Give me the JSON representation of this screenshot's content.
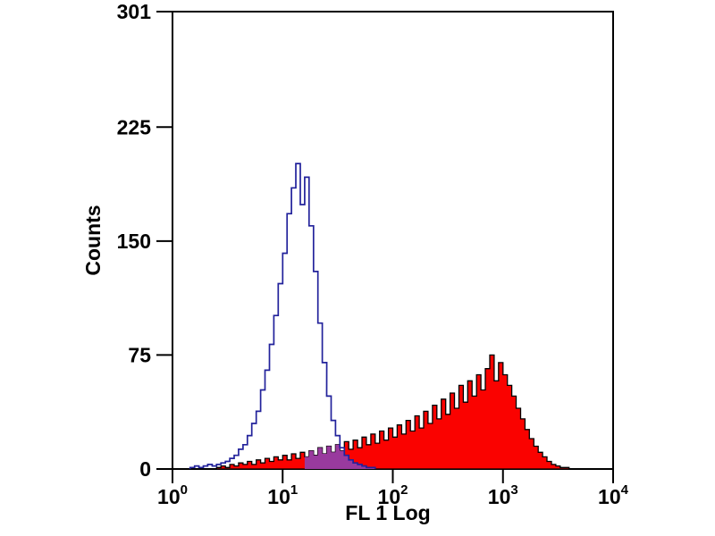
{
  "figure": {
    "background": "#ffffff",
    "axis_color": "#000000"
  },
  "chart_data": {
    "type": "area",
    "subtype": "flow-cytometry-overlay-histogram",
    "title": "",
    "xlabel": "FL 1 Log",
    "ylabel": "Counts",
    "x_scale": "log10",
    "xlim_log10": [
      0,
      4
    ],
    "ylim": [
      0,
      301
    ],
    "x_tick_exponents": [
      0,
      1,
      2,
      3,
      4
    ],
    "x_tick_base": "10",
    "y_ticks": [
      0,
      75,
      150,
      225,
      301
    ],
    "grid": false,
    "legend": "none",
    "x_log10": [
      0,
      0.04,
      0.08,
      0.12,
      0.16,
      0.2,
      0.24,
      0.28,
      0.32,
      0.36,
      0.4,
      0.44,
      0.48,
      0.52,
      0.56,
      0.6,
      0.64,
      0.68,
      0.72,
      0.76,
      0.8,
      0.84,
      0.88,
      0.92,
      0.96,
      1,
      1.04,
      1.08,
      1.12,
      1.16,
      1.2,
      1.24,
      1.28,
      1.32,
      1.36,
      1.4,
      1.44,
      1.48,
      1.52,
      1.56,
      1.6,
      1.64,
      1.68,
      1.72,
      1.76,
      1.8,
      1.84,
      1.88,
      1.92,
      1.96,
      2,
      2.04,
      2.08,
      2.12,
      2.16,
      2.2,
      2.24,
      2.28,
      2.32,
      2.36,
      2.4,
      2.44,
      2.48,
      2.52,
      2.56,
      2.6,
      2.64,
      2.68,
      2.72,
      2.76,
      2.8,
      2.84,
      2.88,
      2.92,
      2.96,
      3,
      3.04,
      3.08,
      3.12,
      3.16,
      3.2,
      3.24,
      3.28,
      3.32,
      3.36,
      3.4,
      3.44,
      3.48,
      3.52,
      3.56,
      3.6,
      3.64,
      3.68,
      3.72,
      3.76,
      3.8,
      3.84,
      3.88,
      3.92,
      3.96,
      4
    ],
    "series": [
      {
        "name": "red_filled_histogram",
        "style": "filled",
        "fill_color": "#fa0200",
        "line_color": "#000000",
        "counts": [
          0,
          0,
          0,
          0,
          0,
          0,
          0,
          0,
          0,
          0,
          1,
          2,
          1,
          3,
          2,
          4,
          3,
          5,
          3,
          6,
          4,
          7,
          5,
          8,
          6,
          9,
          6,
          10,
          7,
          11,
          8,
          12,
          9,
          14,
          10,
          15,
          11,
          16,
          12,
          18,
          13,
          19,
          14,
          21,
          16,
          23,
          17,
          25,
          19,
          27,
          21,
          29,
          23,
          32,
          25,
          35,
          27,
          38,
          30,
          42,
          33,
          46,
          36,
          50,
          40,
          55,
          44,
          58,
          48,
          62,
          52,
          66,
          75,
          58,
          70,
          62,
          55,
          48,
          40,
          33,
          26,
          20,
          15,
          11,
          8,
          5,
          3,
          2,
          1,
          1,
          0,
          0,
          0,
          0,
          0,
          0,
          0,
          0,
          0,
          0,
          0
        ]
      },
      {
        "name": "blue_open_histogram",
        "style": "open",
        "fill_color": "none",
        "line_color": "#22229b",
        "counts": [
          0,
          0,
          0,
          0,
          1,
          2,
          1,
          2,
          3,
          2,
          3,
          4,
          5,
          7,
          9,
          13,
          16,
          22,
          30,
          38,
          52,
          65,
          82,
          101,
          122,
          142,
          168,
          185,
          201,
          174,
          192,
          160,
          130,
          96,
          70,
          48,
          32,
          22,
          14,
          9,
          6,
          4,
          3,
          2,
          1,
          1,
          0,
          0,
          0,
          0,
          0,
          0,
          0,
          0,
          0,
          0,
          0,
          0,
          0,
          0,
          0,
          0,
          0,
          0,
          0,
          0,
          0,
          0,
          0,
          0,
          0,
          0,
          0,
          0,
          0,
          0,
          0,
          0,
          0,
          0,
          0,
          0,
          0,
          0,
          0,
          0,
          0,
          0,
          0,
          0,
          0,
          0,
          0,
          0,
          0,
          0,
          0,
          0,
          0,
          0,
          0
        ]
      }
    ],
    "overlap": {
      "color": "#993a9e",
      "range_log10": [
        1.2,
        1.85
      ]
    }
  }
}
